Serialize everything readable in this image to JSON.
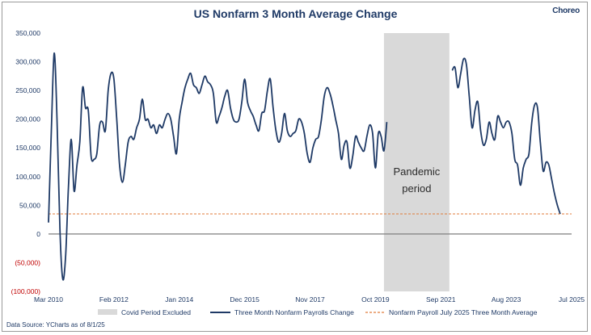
{
  "brand": "Choreo",
  "source_note": "Data Source: YCharts as of 8/1/25",
  "chart_data": {
    "type": "line",
    "title": "US Nonfarm 3 Month Average Change",
    "ylim": [
      -100000,
      350000
    ],
    "y_ticks": [
      {
        "value": 350000,
        "label": "350,000"
      },
      {
        "value": 300000,
        "label": "300,000"
      },
      {
        "value": 250000,
        "label": "250,000"
      },
      {
        "value": 200000,
        "label": "200,000"
      },
      {
        "value": 150000,
        "label": "150,000"
      },
      {
        "value": 100000,
        "label": "100,000"
      },
      {
        "value": 50000,
        "label": "50,000"
      },
      {
        "value": 0,
        "label": "0"
      },
      {
        "value": -50000,
        "label": "(50,000)"
      },
      {
        "value": -100000,
        "label": "(100,000)"
      }
    ],
    "x_ticks": [
      "Mar 2010",
      "Feb 2012",
      "Jan 2014",
      "Dec 2015",
      "Nov 2017",
      "Oct 2019",
      "Sep 2021",
      "Aug 2023",
      "Jul 2025"
    ],
    "covid_band": {
      "start": "Jan 2020",
      "end": "Dec 2021"
    },
    "annotation": [
      "Pandemic",
      "period"
    ],
    "reference_line": {
      "name": "Nonfarm Payroll July 2025 Three Month Average",
      "value": 35000,
      "color": "#e07b39"
    },
    "legend": [
      {
        "name": "Covid Period Excluded",
        "kind": "band",
        "color": "#d9d9d9"
      },
      {
        "name": "Three Month Nonfarm Payrolls Change",
        "kind": "line",
        "color": "#1f3a66"
      },
      {
        "name": "Nonfarm Payroll July 2025 Three Month Average",
        "kind": "dash",
        "color": "#e07b39"
      }
    ],
    "series": [
      {
        "name": "Three Month Nonfarm Payrolls Change",
        "color": "#1f3a66",
        "segments": [
          [
            [
              "2010-03",
              20000
            ],
            [
              "2010-04",
              180000
            ],
            [
              "2010-05",
              315000
            ],
            [
              "2010-06",
              200000
            ],
            [
              "2010-07",
              10000
            ],
            [
              "2010-08",
              -78000
            ],
            [
              "2010-09",
              -40000
            ],
            [
              "2010-10",
              80000
            ],
            [
              "2010-11",
              165000
            ],
            [
              "2010-12",
              75000
            ],
            [
              "2011-01",
              120000
            ],
            [
              "2011-02",
              160000
            ],
            [
              "2011-03",
              255000
            ],
            [
              "2011-04",
              220000
            ],
            [
              "2011-05",
              215000
            ],
            [
              "2011-06",
              135000
            ],
            [
              "2011-07",
              130000
            ],
            [
              "2011-08",
              140000
            ],
            [
              "2011-09",
              190000
            ],
            [
              "2011-10",
              195000
            ],
            [
              "2011-11",
              180000
            ],
            [
              "2011-12",
              250000
            ],
            [
              "2012-01",
              280000
            ],
            [
              "2012-02",
              270000
            ],
            [
              "2012-03",
              200000
            ],
            [
              "2012-04",
              120000
            ],
            [
              "2012-05",
              90000
            ],
            [
              "2012-06",
              120000
            ],
            [
              "2012-07",
              160000
            ],
            [
              "2012-08",
              170000
            ],
            [
              "2012-09",
              165000
            ],
            [
              "2012-10",
              185000
            ],
            [
              "2012-11",
              200000
            ],
            [
              "2012-12",
              235000
            ],
            [
              "2013-01",
              200000
            ],
            [
              "2013-02",
              200000
            ],
            [
              "2013-03",
              185000
            ],
            [
              "2013-04",
              190000
            ],
            [
              "2013-05",
              175000
            ],
            [
              "2013-06",
              190000
            ],
            [
              "2013-07",
              185000
            ],
            [
              "2013-08",
              200000
            ],
            [
              "2013-09",
              210000
            ],
            [
              "2013-10",
              200000
            ],
            [
              "2013-11",
              170000
            ],
            [
              "2013-12",
              140000
            ],
            [
              "2014-01",
              200000
            ],
            [
              "2014-02",
              230000
            ],
            [
              "2014-03",
              255000
            ],
            [
              "2014-04",
              270000
            ],
            [
              "2014-05",
              280000
            ],
            [
              "2014-06",
              260000
            ],
            [
              "2014-07",
              255000
            ],
            [
              "2014-08",
              245000
            ],
            [
              "2014-09",
              260000
            ],
            [
              "2014-10",
              275000
            ],
            [
              "2014-11",
              265000
            ],
            [
              "2014-12",
              260000
            ],
            [
              "2015-01",
              245000
            ],
            [
              "2015-02",
              195000
            ],
            [
              "2015-03",
              205000
            ],
            [
              "2015-04",
              220000
            ],
            [
              "2015-05",
              240000
            ],
            [
              "2015-06",
              250000
            ],
            [
              "2015-07",
              220000
            ],
            [
              "2015-08",
              200000
            ],
            [
              "2015-09",
              195000
            ],
            [
              "2015-10",
              200000
            ],
            [
              "2015-11",
              230000
            ],
            [
              "2015-12",
              270000
            ],
            [
              "2016-01",
              230000
            ],
            [
              "2016-02",
              215000
            ],
            [
              "2016-03",
              205000
            ],
            [
              "2016-04",
              190000
            ],
            [
              "2016-05",
              180000
            ],
            [
              "2016-06",
              210000
            ],
            [
              "2016-07",
              215000
            ],
            [
              "2016-08",
              250000
            ],
            [
              "2016-09",
              270000
            ],
            [
              "2016-10",
              220000
            ],
            [
              "2016-11",
              180000
            ],
            [
              "2016-12",
              160000
            ],
            [
              "2017-01",
              175000
            ],
            [
              "2017-02",
              210000
            ],
            [
              "2017-03",
              180000
            ],
            [
              "2017-04",
              170000
            ],
            [
              "2017-05",
              175000
            ],
            [
              "2017-06",
              180000
            ],
            [
              "2017-07",
              200000
            ],
            [
              "2017-08",
              195000
            ],
            [
              "2017-09",
              175000
            ],
            [
              "2017-10",
              140000
            ],
            [
              "2017-11",
              125000
            ],
            [
              "2017-12",
              150000
            ],
            [
              "2018-01",
              165000
            ],
            [
              "2018-02",
              170000
            ],
            [
              "2018-03",
              200000
            ],
            [
              "2018-04",
              240000
            ],
            [
              "2018-05",
              255000
            ],
            [
              "2018-06",
              245000
            ],
            [
              "2018-07",
              225000
            ],
            [
              "2018-08",
              200000
            ],
            [
              "2018-09",
              175000
            ],
            [
              "2018-10",
              130000
            ],
            [
              "2018-11",
              155000
            ],
            [
              "2018-12",
              160000
            ],
            [
              "2019-01",
              115000
            ],
            [
              "2019-02",
              135000
            ],
            [
              "2019-03",
              170000
            ],
            [
              "2019-04",
              160000
            ],
            [
              "2019-05",
              150000
            ],
            [
              "2019-06",
              145000
            ],
            [
              "2019-07",
              170000
            ],
            [
              "2019-08",
              190000
            ],
            [
              "2019-09",
              175000
            ],
            [
              "2019-10",
              115000
            ],
            [
              "2019-11",
              175000
            ],
            [
              "2019-12",
              170000
            ],
            [
              "2020-01",
              145000
            ],
            [
              "2020-02",
              195000
            ]
          ],
          [
            [
              "2022-01",
              285000
            ],
            [
              "2022-02",
              290000
            ],
            [
              "2022-03",
              255000
            ],
            [
              "2022-04",
              280000
            ],
            [
              "2022-05",
              305000
            ],
            [
              "2022-06",
              295000
            ],
            [
              "2022-07",
              240000
            ],
            [
              "2022-08",
              185000
            ],
            [
              "2022-09",
              215000
            ],
            [
              "2022-10",
              230000
            ],
            [
              "2022-11",
              180000
            ],
            [
              "2022-12",
              155000
            ],
            [
              "2023-01",
              165000
            ],
            [
              "2023-02",
              195000
            ],
            [
              "2023-03",
              175000
            ],
            [
              "2023-04",
              165000
            ],
            [
              "2023-05",
              205000
            ],
            [
              "2023-06",
              195000
            ],
            [
              "2023-07",
              185000
            ],
            [
              "2023-08",
              195000
            ],
            [
              "2023-09",
              195000
            ],
            [
              "2023-10",
              175000
            ],
            [
              "2023-11",
              130000
            ],
            [
              "2023-12",
              120000
            ],
            [
              "2024-01",
              85000
            ],
            [
              "2024-02",
              115000
            ],
            [
              "2024-03",
              130000
            ],
            [
              "2024-04",
              140000
            ],
            [
              "2024-05",
              195000
            ],
            [
              "2024-06",
              225000
            ],
            [
              "2024-07",
              220000
            ],
            [
              "2024-08",
              160000
            ],
            [
              "2024-09",
              110000
            ],
            [
              "2024-10",
              125000
            ],
            [
              "2024-11",
              120000
            ],
            [
              "2024-12",
              95000
            ],
            [
              "2025-01",
              70000
            ],
            [
              "2025-02",
              50000
            ],
            [
              "2025-03",
              35000
            ]
          ]
        ]
      }
    ]
  }
}
